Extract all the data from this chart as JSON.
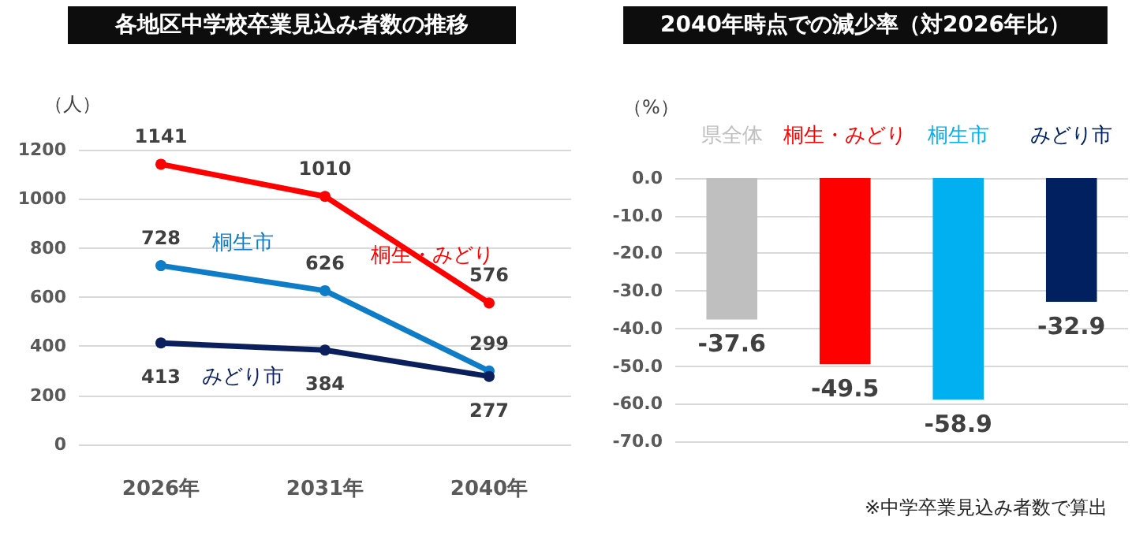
{
  "chart_data": [
    {
      "type": "line",
      "title": "各地区中学校卒業見込み者数の推移",
      "ylabel": "（人）",
      "categories": [
        "2026年",
        "2031年",
        "2040年"
      ],
      "series": [
        {
          "name": "桐生・みどり",
          "color": "#ff0000",
          "values": [
            1141,
            1010,
            576
          ]
        },
        {
          "name": "桐生市",
          "color": "#0f7cc8",
          "values": [
            728,
            626,
            299
          ]
        },
        {
          "name": "みどり市",
          "color": "#0a1f5c",
          "values": [
            413,
            384,
            277
          ]
        }
      ],
      "ylim": [
        0,
        1200
      ],
      "yticks": [
        0,
        200,
        400,
        600,
        800,
        1000,
        1200
      ],
      "grid": "y",
      "legend": false,
      "marker": "circle",
      "line_style": "solid",
      "data_labels": true
    },
    {
      "type": "bar",
      "title": "2040年時点での減少率（対2026年比）",
      "ylabel": "（%）",
      "categories": [
        "県全体",
        "桐生・みどり",
        "桐生市",
        "みどり市"
      ],
      "values": [
        -37.6,
        -49.5,
        -58.9,
        -32.9
      ],
      "colors": [
        "#bfbfbf",
        "#ff0000",
        "#00b0f0",
        "#002060"
      ],
      "ylim": [
        -70,
        0
      ],
      "yticks": [
        {
          "value": 0,
          "label": "0.0"
        },
        {
          "value": -10,
          "label": "-10.0"
        },
        {
          "value": -20,
          "label": "-20.0"
        },
        {
          "value": -30,
          "label": "-30.0"
        },
        {
          "value": -40,
          "label": "-40.0"
        },
        {
          "value": -50,
          "label": "-50.0"
        },
        {
          "value": -60,
          "label": "-60.0"
        },
        {
          "value": -70,
          "label": "-70.0"
        }
      ],
      "grid": "y",
      "legend": false,
      "data_labels": true,
      "annotations": [
        "※中学卒業見込み者数で算出"
      ]
    }
  ]
}
